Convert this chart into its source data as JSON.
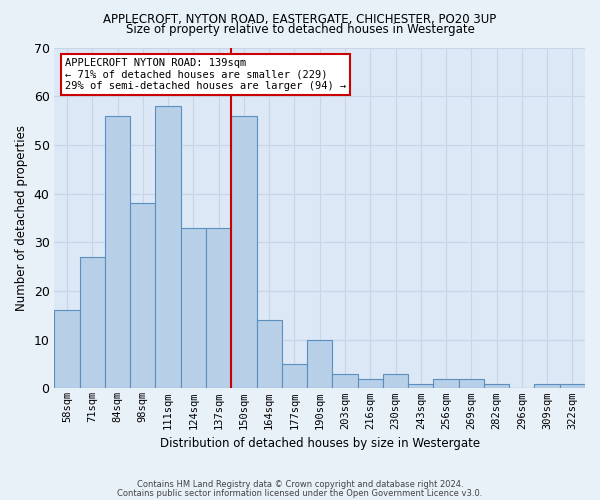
{
  "title": "APPLECROFT, NYTON ROAD, EASTERGATE, CHICHESTER, PO20 3UP",
  "subtitle": "Size of property relative to detached houses in Westergate",
  "xlabel": "Distribution of detached houses by size in Westergate",
  "ylabel": "Number of detached properties",
  "bar_labels": [
    "58sqm",
    "71sqm",
    "84sqm",
    "98sqm",
    "111sqm",
    "124sqm",
    "137sqm",
    "150sqm",
    "164sqm",
    "177sqm",
    "190sqm",
    "203sqm",
    "216sqm",
    "230sqm",
    "243sqm",
    "256sqm",
    "269sqm",
    "282sqm",
    "296sqm",
    "309sqm",
    "322sqm"
  ],
  "bar_values": [
    16,
    27,
    56,
    38,
    58,
    33,
    33,
    56,
    14,
    5,
    10,
    3,
    2,
    3,
    1,
    2,
    2,
    1,
    0,
    1,
    1
  ],
  "bar_color": "#b8cfe8",
  "bar_edge_color": "#5a8fc0",
  "vline_between": 6,
  "vline_color": "#cc0000",
  "annotation_text": "APPLECROFT NYTON ROAD: 139sqm\n← 71% of detached houses are smaller (229)\n29% of semi-detached houses are larger (94) →",
  "annotation_box_color": "#ffffff",
  "annotation_box_edge_color": "#cc0000",
  "ylim": [
    0,
    70
  ],
  "yticks": [
    0,
    10,
    20,
    30,
    40,
    50,
    60,
    70
  ],
  "grid_color": "#c8d4e8",
  "background_color": "#dce8f5",
  "fig_background": "#e8f0f8",
  "footer1": "Contains HM Land Registry data © Crown copyright and database right 2024.",
  "footer2": "Contains public sector information licensed under the Open Government Licence v3.0."
}
